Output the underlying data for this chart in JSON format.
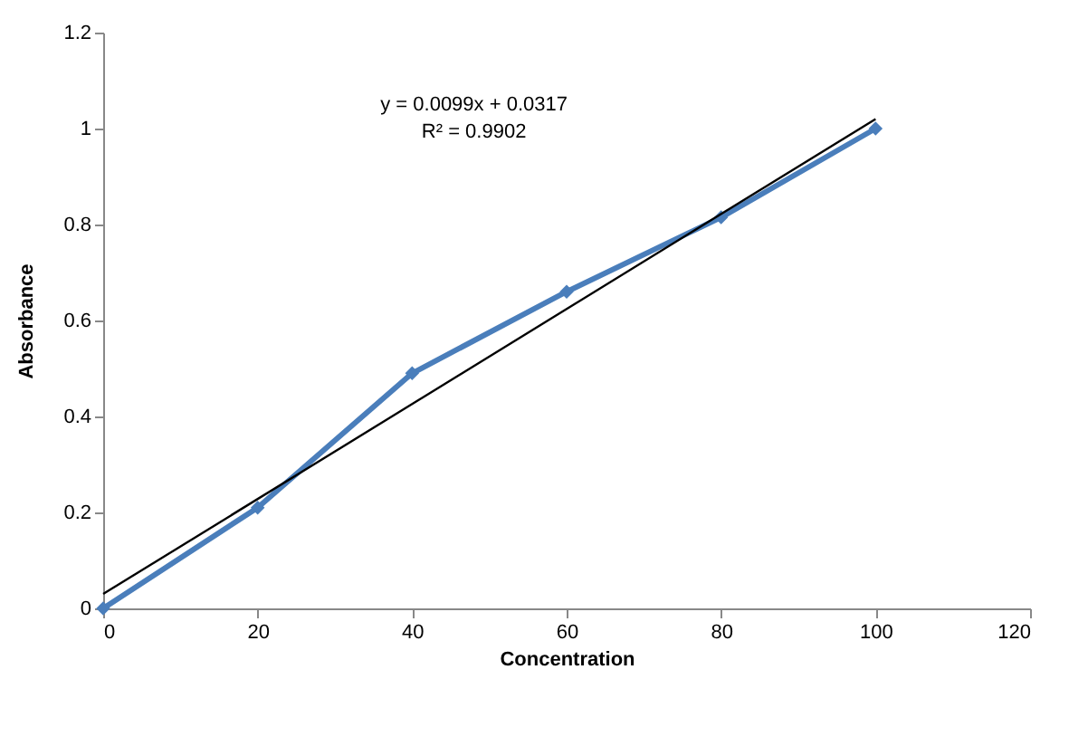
{
  "chart_data": {
    "type": "line",
    "xlabel": "Concentration",
    "ylabel": "Absorbance",
    "x": [
      0,
      20,
      40,
      60,
      80,
      100
    ],
    "series": [
      {
        "color": "#4a7ebb",
        "values": [
          0,
          0.21,
          0.49,
          0.66,
          0.815,
          1.0
        ],
        "marker": "diamond",
        "line_style": "solid"
      },
      {
        "type": "line",
        "color": "#000000",
        "x": [
          0,
          100
        ],
        "values": [
          0.03,
          1.02
        ],
        "marker": "none",
        "line_style": "solid"
      }
    ],
    "annotations": [
      "y = 0.0099x + 0.0317",
      "R² = 0.9902"
    ],
    "xlim": [
      0,
      120
    ],
    "xticks": [
      0,
      20,
      40,
      60,
      80,
      100,
      120
    ],
    "ylim": [
      0,
      1.2
    ],
    "yticks": [
      0,
      0.2,
      0.4,
      0.6,
      0.8,
      1,
      1.2
    ],
    "grid": false
  }
}
